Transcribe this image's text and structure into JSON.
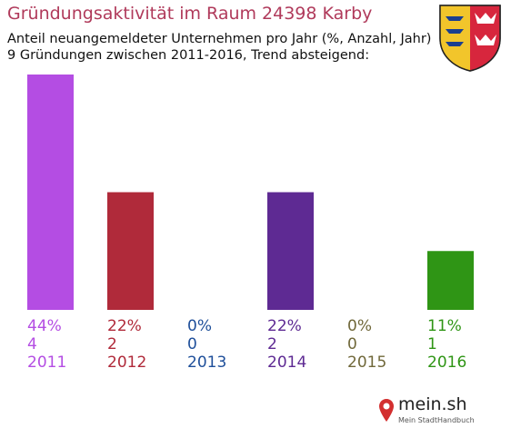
{
  "header": {
    "title": "Gründungsaktivität im Raum 24398 Karby",
    "subtitle_line1": "Anteil neuangemeldeter Unternehmen pro Jahr (%, Anzahl, Jahr)",
    "subtitle_line2": "9 Gründungen zwischen 2011-2016, Trend absteigend:"
  },
  "coat_of_arms": {
    "icon": "coat-of-arms-icon"
  },
  "brand": {
    "name": "mein.sh",
    "tagline": "Mein StadtHandbuch",
    "icon": "map-pin-logo-icon"
  },
  "chart_data": {
    "type": "bar",
    "categories": [
      "2011",
      "2012",
      "2013",
      "2014",
      "2015",
      "2016"
    ],
    "values": [
      44,
      22,
      0,
      22,
      0,
      11
    ],
    "counts": [
      4,
      2,
      0,
      2,
      0,
      1
    ],
    "percent_labels": [
      "44%",
      "22%",
      "0%",
      "22%",
      "0%",
      "11%"
    ],
    "count_labels": [
      "4",
      "2",
      "0",
      "2",
      "0",
      "1"
    ],
    "colors": [
      "#b44de3",
      "#b02a3a",
      "#1f4f9a",
      "#5e2a93",
      "#70683a",
      "#2f9515"
    ],
    "ylim": [
      0,
      44
    ],
    "grid": false,
    "legend": "none"
  }
}
